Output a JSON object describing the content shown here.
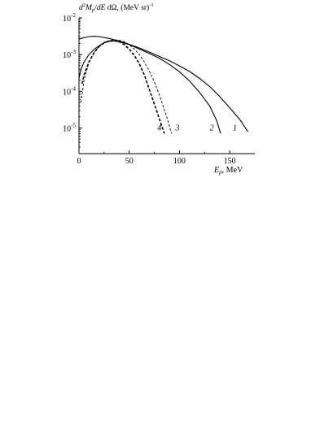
{
  "chart_data": {
    "type": "line",
    "ylabel": "d²Mp/dE dΩ, (MeV sr)⁻¹",
    "ylabel_parts": {
      "d": "d",
      "sup2": "2",
      "M": "M",
      "p": "p",
      "rest": "/",
      "dE": "dE",
      "dOmega": " dΩ, (MeV sr)",
      "exp": "-1"
    },
    "xlabel_parts": {
      "E": "E",
      "p": "p",
      "unit": ", MeV"
    },
    "xlabel": "Ep, MeV",
    "scale_y": "log",
    "xlim": [
      0,
      175
    ],
    "ylim_log10": [
      -5.7,
      -2
    ],
    "x_ticks": [
      0,
      50,
      100,
      150
    ],
    "x_tick_labels": [
      "0",
      "50",
      "100",
      "150"
    ],
    "y_ticks_log10": [
      -2,
      -3,
      -4,
      -5
    ],
    "y_tick_labels": [
      {
        "base": "10",
        "exp": "-2"
      },
      {
        "base": "10",
        "exp": "-3"
      },
      {
        "base": "10",
        "exp": "-4"
      },
      {
        "base": "10",
        "exp": "-5"
      }
    ],
    "grid": false,
    "series": [
      {
        "name": "1",
        "style": "solid",
        "label_at": [
          153,
          -5.0
        ],
        "points": [
          [
            0,
            -2.58
          ],
          [
            5,
            -2.54
          ],
          [
            10,
            -2.51
          ],
          [
            15,
            -2.5
          ],
          [
            20,
            -2.51
          ],
          [
            30,
            -2.56
          ],
          [
            40,
            -2.63
          ],
          [
            50,
            -2.72
          ],
          [
            60,
            -2.82
          ],
          [
            70,
            -2.93
          ],
          [
            80,
            -3.05
          ],
          [
            90,
            -3.17
          ],
          [
            100,
            -3.31
          ],
          [
            110,
            -3.46
          ],
          [
            120,
            -3.65
          ],
          [
            130,
            -3.87
          ],
          [
            140,
            -4.14
          ],
          [
            150,
            -4.45
          ],
          [
            160,
            -4.77
          ],
          [
            168,
            -5.1
          ]
        ]
      },
      {
        "name": "2",
        "style": "solid",
        "label_at": [
          130,
          -5.0
        ],
        "points": [
          [
            0,
            -3.65
          ],
          [
            2,
            -3.4
          ],
          [
            5,
            -3.2
          ],
          [
            10,
            -3.0
          ],
          [
            15,
            -2.86
          ],
          [
            20,
            -2.76
          ],
          [
            25,
            -2.68
          ],
          [
            30,
            -2.64
          ],
          [
            35,
            -2.63
          ],
          [
            40,
            -2.65
          ],
          [
            50,
            -2.73
          ],
          [
            60,
            -2.85
          ],
          [
            70,
            -2.97
          ],
          [
            80,
            -3.1
          ],
          [
            90,
            -3.27
          ],
          [
            100,
            -3.47
          ],
          [
            110,
            -3.72
          ],
          [
            120,
            -4.03
          ],
          [
            130,
            -4.4
          ],
          [
            137,
            -4.8
          ],
          [
            141,
            -5.15
          ]
        ]
      },
      {
        "name": "3",
        "style": "dashed",
        "label_at": [
          96,
          -5.0
        ],
        "points": [
          [
            2,
            -4.3
          ],
          [
            5,
            -3.7
          ],
          [
            10,
            -3.2
          ],
          [
            15,
            -2.95
          ],
          [
            20,
            -2.78
          ],
          [
            25,
            -2.67
          ],
          [
            30,
            -2.62
          ],
          [
            35,
            -2.6
          ],
          [
            40,
            -2.61
          ],
          [
            45,
            -2.65
          ],
          [
            50,
            -2.73
          ],
          [
            55,
            -2.85
          ],
          [
            60,
            -3.0
          ],
          [
            65,
            -3.2
          ],
          [
            70,
            -3.45
          ],
          [
            75,
            -3.75
          ],
          [
            80,
            -4.1
          ],
          [
            85,
            -4.5
          ],
          [
            89,
            -4.85
          ],
          [
            92,
            -5.15
          ]
        ]
      },
      {
        "name": "4",
        "style": "dashed-bold",
        "label_at": [
          78,
          -5.0
        ],
        "points": [
          [
            3,
            -3.8
          ],
          [
            5,
            -3.55
          ],
          [
            10,
            -3.2
          ],
          [
            15,
            -2.95
          ],
          [
            20,
            -2.78
          ],
          [
            25,
            -2.68
          ],
          [
            30,
            -2.63
          ],
          [
            35,
            -2.62
          ],
          [
            40,
            -2.65
          ],
          [
            45,
            -2.73
          ],
          [
            50,
            -2.85
          ],
          [
            55,
            -3.02
          ],
          [
            60,
            -3.25
          ],
          [
            65,
            -3.55
          ],
          [
            70,
            -3.95
          ],
          [
            75,
            -4.35
          ],
          [
            80,
            -4.75
          ],
          [
            85,
            -5.15
          ]
        ]
      }
    ]
  }
}
